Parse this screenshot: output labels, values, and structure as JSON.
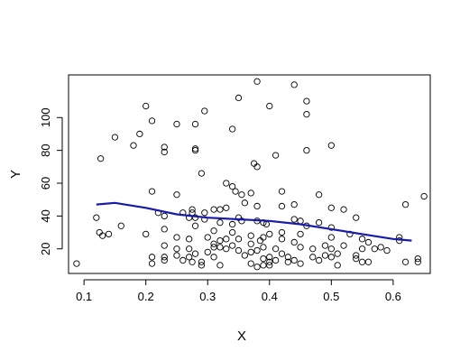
{
  "chart_data": {
    "type": "scatter",
    "title": "",
    "xlabel": "X",
    "ylabel": "Y",
    "xlim": [
      0.075,
      0.66
    ],
    "ylim": [
      5,
      126
    ],
    "xticks": [
      0.1,
      0.2,
      0.3,
      0.4,
      0.5,
      0.6
    ],
    "xtick_labels": [
      "0.1",
      "0.2",
      "0.3",
      "0.4",
      "0.5",
      "0.6"
    ],
    "yticks": [
      20,
      40,
      60,
      80,
      100
    ],
    "ytick_labels": [
      "20",
      "40",
      "60",
      "80",
      "100"
    ],
    "grid": false,
    "legend": "none",
    "colors": {
      "points": "#000000",
      "smooth_line": "#1a1aa8",
      "box": "#000000"
    },
    "points": [
      [
        0.088,
        11
      ],
      [
        0.12,
        39
      ],
      [
        0.125,
        30
      ],
      [
        0.127,
        75
      ],
      [
        0.13,
        28
      ],
      [
        0.14,
        29
      ],
      [
        0.15,
        88
      ],
      [
        0.16,
        34
      ],
      [
        0.18,
        83
      ],
      [
        0.19,
        90
      ],
      [
        0.2,
        29
      ],
      [
        0.2,
        107
      ],
      [
        0.21,
        98
      ],
      [
        0.21,
        55
      ],
      [
        0.21,
        15
      ],
      [
        0.21,
        11
      ],
      [
        0.22,
        42
      ],
      [
        0.23,
        82
      ],
      [
        0.23,
        79
      ],
      [
        0.23,
        40
      ],
      [
        0.23,
        32
      ],
      [
        0.23,
        22
      ],
      [
        0.23,
        15
      ],
      [
        0.23,
        13
      ],
      [
        0.25,
        96
      ],
      [
        0.25,
        53
      ],
      [
        0.25,
        27
      ],
      [
        0.25,
        20
      ],
      [
        0.25,
        16
      ],
      [
        0.26,
        42
      ],
      [
        0.26,
        13
      ],
      [
        0.27,
        39
      ],
      [
        0.27,
        26
      ],
      [
        0.27,
        20
      ],
      [
        0.27,
        15
      ],
      [
        0.275,
        44
      ],
      [
        0.275,
        42
      ],
      [
        0.275,
        12
      ],
      [
        0.28,
        96
      ],
      [
        0.28,
        81
      ],
      [
        0.28,
        80
      ],
      [
        0.28,
        39
      ],
      [
        0.28,
        34
      ],
      [
        0.28,
        17
      ],
      [
        0.29,
        66
      ],
      [
        0.29,
        12
      ],
      [
        0.29,
        10
      ],
      [
        0.295,
        104
      ],
      [
        0.295,
        42
      ],
      [
        0.295,
        38
      ],
      [
        0.3,
        27
      ],
      [
        0.3,
        18
      ],
      [
        0.31,
        44
      ],
      [
        0.31,
        31
      ],
      [
        0.31,
        23
      ],
      [
        0.31,
        21
      ],
      [
        0.31,
        15
      ],
      [
        0.32,
        44
      ],
      [
        0.32,
        36
      ],
      [
        0.32,
        25
      ],
      [
        0.32,
        21
      ],
      [
        0.32,
        10
      ],
      [
        0.33,
        60
      ],
      [
        0.33,
        45
      ],
      [
        0.33,
        26
      ],
      [
        0.33,
        20
      ],
      [
        0.34,
        93
      ],
      [
        0.34,
        58
      ],
      [
        0.34,
        35
      ],
      [
        0.34,
        30
      ],
      [
        0.34,
        22
      ],
      [
        0.345,
        55
      ],
      [
        0.35,
        112
      ],
      [
        0.35,
        39
      ],
      [
        0.35,
        26
      ],
      [
        0.35,
        19
      ],
      [
        0.355,
        53
      ],
      [
        0.355,
        37
      ],
      [
        0.36,
        48
      ],
      [
        0.36,
        16
      ],
      [
        0.37,
        54
      ],
      [
        0.37,
        28
      ],
      [
        0.37,
        23
      ],
      [
        0.37,
        18
      ],
      [
        0.37,
        11
      ],
      [
        0.375,
        72
      ],
      [
        0.38,
        46
      ],
      [
        0.38,
        37
      ],
      [
        0.38,
        19
      ],
      [
        0.38,
        9
      ],
      [
        0.38,
        122
      ],
      [
        0.38,
        70
      ],
      [
        0.385,
        25
      ],
      [
        0.39,
        36
      ],
      [
        0.39,
        27
      ],
      [
        0.39,
        21
      ],
      [
        0.39,
        14
      ],
      [
        0.39,
        10
      ],
      [
        0.395,
        35
      ],
      [
        0.4,
        107
      ],
      [
        0.4,
        29
      ],
      [
        0.4,
        15
      ],
      [
        0.4,
        12
      ],
      [
        0.4,
        10
      ],
      [
        0.41,
        77
      ],
      [
        0.41,
        20
      ],
      [
        0.41,
        13
      ],
      [
        0.42,
        55
      ],
      [
        0.42,
        46
      ],
      [
        0.42,
        30
      ],
      [
        0.42,
        26
      ],
      [
        0.42,
        17
      ],
      [
        0.43,
        15
      ],
      [
        0.43,
        12
      ],
      [
        0.44,
        120
      ],
      [
        0.44,
        47
      ],
      [
        0.44,
        38
      ],
      [
        0.44,
        24
      ],
      [
        0.44,
        13
      ],
      [
        0.45,
        37
      ],
      [
        0.45,
        29
      ],
      [
        0.45,
        21
      ],
      [
        0.45,
        11
      ],
      [
        0.46,
        110
      ],
      [
        0.46,
        102
      ],
      [
        0.46,
        80
      ],
      [
        0.46,
        34
      ],
      [
        0.47,
        20
      ],
      [
        0.47,
        15
      ],
      [
        0.48,
        53
      ],
      [
        0.48,
        36
      ],
      [
        0.48,
        13
      ],
      [
        0.49,
        22
      ],
      [
        0.49,
        16
      ],
      [
        0.5,
        83
      ],
      [
        0.5,
        45
      ],
      [
        0.5,
        33
      ],
      [
        0.5,
        27
      ],
      [
        0.5,
        20
      ],
      [
        0.5,
        15
      ],
      [
        0.51,
        10
      ],
      [
        0.51,
        17
      ],
      [
        0.52,
        44
      ],
      [
        0.52,
        22
      ],
      [
        0.53,
        29
      ],
      [
        0.54,
        39
      ],
      [
        0.54,
        16
      ],
      [
        0.54,
        14
      ],
      [
        0.55,
        26
      ],
      [
        0.55,
        20
      ],
      [
        0.55,
        12
      ],
      [
        0.56,
        24
      ],
      [
        0.56,
        12
      ],
      [
        0.57,
        20
      ],
      [
        0.58,
        21
      ],
      [
        0.59,
        19
      ],
      [
        0.61,
        27
      ],
      [
        0.61,
        25
      ],
      [
        0.62,
        47
      ],
      [
        0.62,
        12
      ],
      [
        0.64,
        14
      ],
      [
        0.64,
        12
      ],
      [
        0.65,
        52
      ]
    ],
    "smooth_line": {
      "x": [
        0.12,
        0.15,
        0.2,
        0.25,
        0.3,
        0.35,
        0.4,
        0.45,
        0.5,
        0.55,
        0.6,
        0.63
      ],
      "y": [
        47,
        48,
        45,
        41,
        39,
        38,
        37,
        35,
        32,
        29,
        26,
        25
      ]
    }
  }
}
